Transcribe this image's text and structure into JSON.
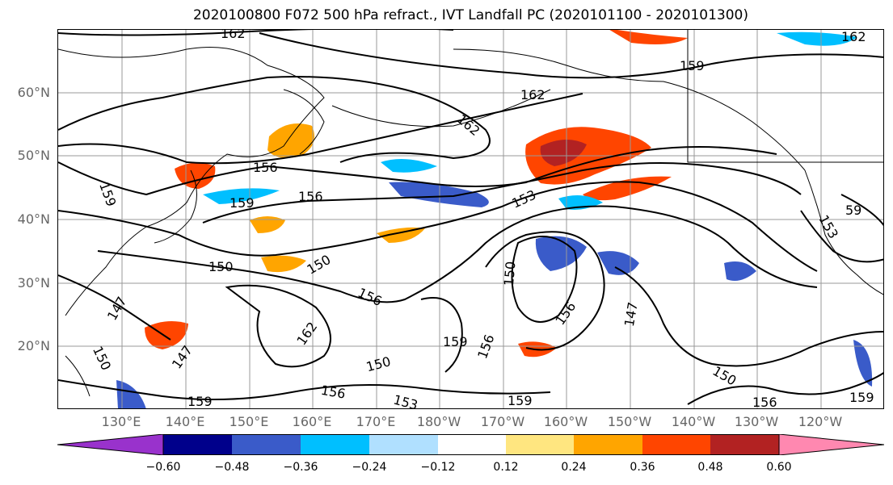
{
  "title": "2020100800 F072 500 hPa refract., IVT Landfall PC (2020101100 - 2020101300)",
  "lat_labels": [
    "60°N",
    "50°N",
    "40°N",
    "30°N",
    "20°N"
  ],
  "lon_labels": [
    "130°E",
    "140°E",
    "150°E",
    "160°E",
    "170°E",
    "180°W",
    "170°W",
    "160°W",
    "150°W",
    "140°W",
    "130°W",
    "120°W"
  ],
  "contour_labels": [
    "162",
    "159",
    "162",
    "162",
    "156",
    "153",
    "159",
    "159",
    "156",
    "150",
    "150",
    "156",
    "147",
    "150",
    "150",
    "162",
    "147",
    "159",
    "156",
    "150",
    "147",
    "156",
    "156",
    "159",
    "150",
    "159",
    "153",
    "59",
    "153",
    "162",
    "156",
    "159"
  ],
  "colorbar": {
    "ticks": [
      "−0.60",
      "−0.48",
      "−0.36",
      "−0.24",
      "−0.12",
      "0.12",
      "0.24",
      "0.36",
      "0.48",
      "0.60"
    ],
    "colors": [
      "#9932cc",
      "#00008b",
      "#3a5bc9",
      "#00bfff",
      "#b0e0ff",
      "#ffffff",
      "#ffe680",
      "#ffa500",
      "#ff4500",
      "#b22222",
      "#ff88b0"
    ]
  }
}
